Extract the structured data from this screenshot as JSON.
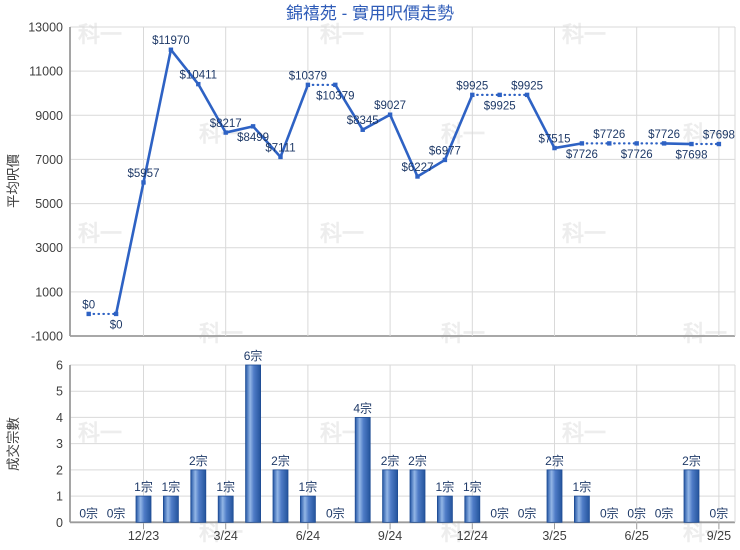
{
  "title": "錦禧苑 - 實用呎價走勢",
  "watermark_text": "科一",
  "colors": {
    "title_text": "#2F5CB8",
    "line": "#2E62C4",
    "data_label": "#1F3A68",
    "bar_dark": "#24549C",
    "bar_mid": "#4F7CC7",
    "bar_light": "#93B6E6",
    "bar_border": "#1E4C94",
    "grid": "#D9D9D9",
    "axis": "#9B9B9B",
    "tick_text": "#3F3F3F",
    "watermark": "#EDEDED"
  },
  "chart_data": [
    {
      "type": "line",
      "title": "錦禧苑 - 實用呎價走勢",
      "ylabel": "平均呎價",
      "ylim": [
        -1000,
        13000
      ],
      "yticks": [
        13000,
        11000,
        9000,
        7000,
        5000,
        3000,
        1000,
        -1000
      ],
      "grid": true,
      "n_points": 24,
      "x_tick_labels": [
        "12/23",
        "3/24",
        "6/24",
        "9/24",
        "12/24",
        "3/25",
        "6/25",
        "9/25"
      ],
      "x_tick_indices": [
        2,
        5,
        8,
        11,
        14,
        17,
        20,
        23
      ],
      "points": [
        {
          "value": 0,
          "label": "$0",
          "label_pos": "above",
          "dotted_from_prev": false
        },
        {
          "value": 0,
          "label": "$0",
          "label_pos": "below",
          "dotted_from_prev": true
        },
        {
          "value": 5957,
          "label": "$5957",
          "label_pos": "above",
          "dotted_from_prev": false
        },
        {
          "value": 11970,
          "label": "$11970",
          "label_pos": "above",
          "dotted_from_prev": false
        },
        {
          "value": 10411,
          "label": "$10411",
          "label_pos": "above",
          "dotted_from_prev": false
        },
        {
          "value": 8217,
          "label": "$8217",
          "label_pos": "above",
          "dotted_from_prev": false
        },
        {
          "value": 8499,
          "label": "$8499",
          "label_pos": "below",
          "dotted_from_prev": false
        },
        {
          "value": 7111,
          "label": "$7111",
          "label_pos": "above",
          "dotted_from_prev": false
        },
        {
          "value": 10379,
          "label": "$10379",
          "label_pos": "above",
          "dotted_from_prev": false
        },
        {
          "value": 10379,
          "label": "$10379",
          "label_pos": "below",
          "dotted_from_prev": true
        },
        {
          "value": 8345,
          "label": "$8345",
          "label_pos": "above",
          "dotted_from_prev": false
        },
        {
          "value": 9027,
          "label": "$9027",
          "label_pos": "above",
          "dotted_from_prev": false
        },
        {
          "value": 6227,
          "label": "$6227",
          "label_pos": "above",
          "dotted_from_prev": false
        },
        {
          "value": 6977,
          "label": "$6977",
          "label_pos": "above",
          "dotted_from_prev": false
        },
        {
          "value": 9925,
          "label": "$9925",
          "label_pos": "above",
          "dotted_from_prev": false
        },
        {
          "value": 9925,
          "label": "$9925",
          "label_pos": "below",
          "dotted_from_prev": true
        },
        {
          "value": 9925,
          "label": "$9925",
          "label_pos": "above",
          "dotted_from_prev": true
        },
        {
          "value": 7515,
          "label": "$7515",
          "label_pos": "above",
          "dotted_from_prev": false
        },
        {
          "value": 7726,
          "label": "$7726",
          "label_pos": "below",
          "dotted_from_prev": false
        },
        {
          "value": 7726,
          "label": "$7726",
          "label_pos": "above",
          "dotted_from_prev": true
        },
        {
          "value": 7726,
          "label": "$7726",
          "label_pos": "below",
          "dotted_from_prev": true
        },
        {
          "value": 7726,
          "label": "$7726",
          "label_pos": "above",
          "dotted_from_prev": true
        },
        {
          "value": 7698,
          "label": "$7698",
          "label_pos": "below",
          "dotted_from_prev": false
        },
        {
          "value": 7698,
          "label": "$7698",
          "label_pos": "above",
          "dotted_from_prev": true
        }
      ]
    },
    {
      "type": "bar",
      "ylabel": "成交宗數",
      "ylim": [
        0,
        6
      ],
      "yticks": [
        6,
        5,
        4,
        3,
        2,
        1,
        0
      ],
      "grid": true,
      "x_tick_labels": [
        "12/23",
        "3/24",
        "6/24",
        "9/24",
        "12/24",
        "3/25",
        "6/25",
        "9/25"
      ],
      "x_tick_indices": [
        2,
        5,
        8,
        11,
        14,
        17,
        20,
        23
      ],
      "values": [
        0,
        0,
        1,
        1,
        2,
        1,
        6,
        2,
        1,
        0,
        4,
        2,
        2,
        1,
        1,
        0,
        0,
        2,
        1,
        0,
        0,
        0,
        2,
        0
      ],
      "labels": [
        "0宗",
        "0宗",
        "1宗",
        "1宗",
        "2宗",
        "1宗",
        "6宗",
        "2宗",
        "1宗",
        "0宗",
        "4宗",
        "2宗",
        "2宗",
        "1宗",
        "1宗",
        "0宗",
        "0宗",
        "2宗",
        "1宗",
        "0宗",
        "0宗",
        "0宗",
        "2宗",
        "0宗"
      ]
    }
  ]
}
